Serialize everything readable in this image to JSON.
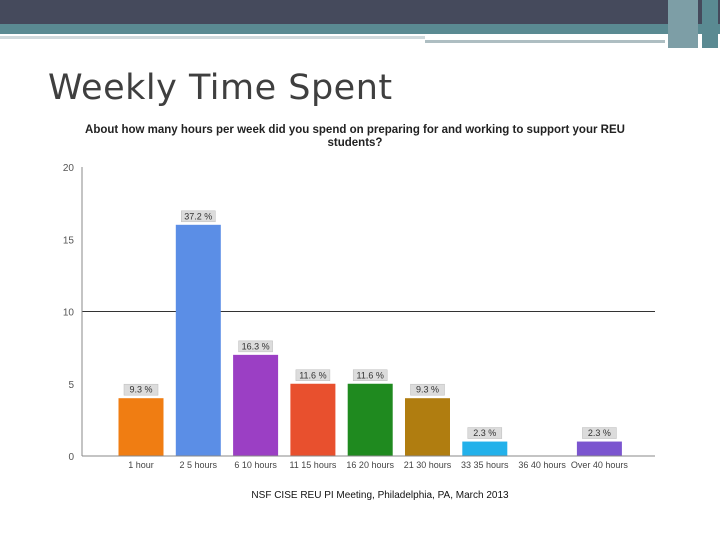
{
  "slide": {
    "title": "Weekly Time Spent",
    "footer": "NSF CISE REU PI Meeting, Philadelphia, PA, March 2013"
  },
  "colors": {
    "topbar": "#454a5c",
    "stripe": "#5a8a92"
  },
  "chart_data": {
    "type": "bar",
    "title": "About how many hours per week did you spend on preparing for and working to support your REU students?",
    "categories": [
      "1 hour",
      "2 5 hours",
      "6 10 hours",
      "11 15 hours",
      "16 20 hours",
      "21 30 hours",
      "33 35 hours",
      "36 40 hours",
      "Over 40 hours"
    ],
    "values": [
      4,
      16,
      7,
      5,
      5,
      4,
      1,
      0,
      1
    ],
    "data_labels": [
      "9.3 %",
      "37.2 %",
      "16.3 %",
      "11.6 %",
      "11.6 %",
      "9.3 %",
      "2.3 %",
      "",
      "2.3 %"
    ],
    "bar_colors": [
      "#f07d12",
      "#5b8ee6",
      "#9b3fc4",
      "#e8502e",
      "#1f8a1f",
      "#b07d10",
      "#23b1ea",
      "#cccccc",
      "#7b55cf"
    ],
    "yticks": [
      0,
      5,
      10,
      15,
      20
    ],
    "ylim": [
      0,
      20
    ],
    "gridlines": [
      10
    ],
    "xlabel": "",
    "ylabel": "",
    "legend": "none"
  }
}
